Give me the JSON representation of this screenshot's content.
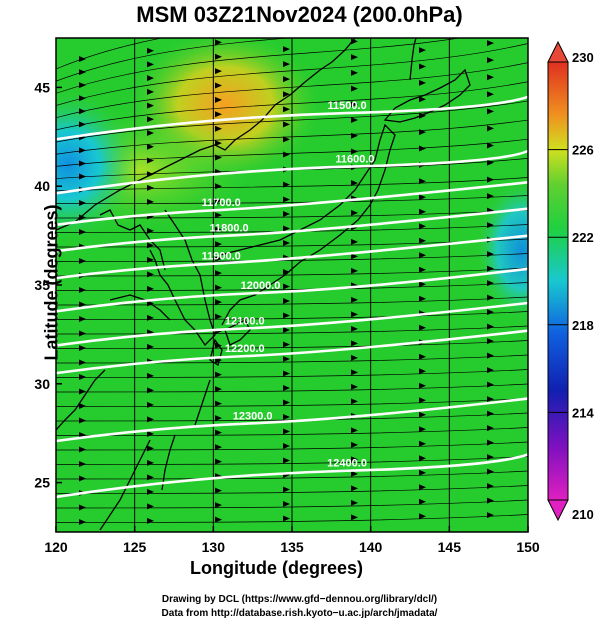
{
  "title": "MSM 03Z21Nov2024 (200.0hPa)",
  "chart_data": {
    "type": "map",
    "xlabel": "Longitude (degrees)",
    "ylabel": "Latitude  (degrees)",
    "xlim": [
      120,
      150
    ],
    "ylim": [
      22.5,
      47.5
    ],
    "xticks": [
      120,
      125,
      130,
      135,
      140,
      145,
      150
    ],
    "yticks": [
      25,
      30,
      35,
      40,
      45
    ],
    "colorbar": {
      "min": 210,
      "max": 230,
      "ticks": [
        210,
        214,
        218,
        222,
        226,
        230
      ]
    },
    "contours": [
      {
        "label": "11500.0",
        "lon": 138.5,
        "lat": 43.7
      },
      {
        "label": "11600.0",
        "lon": 139.0,
        "lat": 41.0
      },
      {
        "label": "11700.0",
        "lon": 130.5,
        "lat": 38.8
      },
      {
        "label": "11800.0",
        "lon": 131.0,
        "lat": 37.5
      },
      {
        "label": "11900.0",
        "lon": 130.5,
        "lat": 36.1
      },
      {
        "label": "12000.0",
        "lon": 133.0,
        "lat": 34.6
      },
      {
        "label": "12100.0",
        "lon": 132.0,
        "lat": 32.8
      },
      {
        "label": "12200.0",
        "lon": 132.0,
        "lat": 31.4
      },
      {
        "label": "12300.0",
        "lon": 132.5,
        "lat": 28.0
      },
      {
        "label": "12400.0",
        "lon": 138.5,
        "lat": 25.6
      }
    ]
  },
  "credits": {
    "line1": "Drawing by DCL (https://www.gfd−dennou.org/library/dcl/)",
    "line2": "Data from http://database.rish.kyoto−u.ac.jp/arch/jmadata/"
  },
  "colors": {
    "field_main": "#22d030",
    "field_warm": "#f0a020",
    "field_cool": "#18c8d8",
    "contour": "#ffffff",
    "coast": "#000000"
  }
}
